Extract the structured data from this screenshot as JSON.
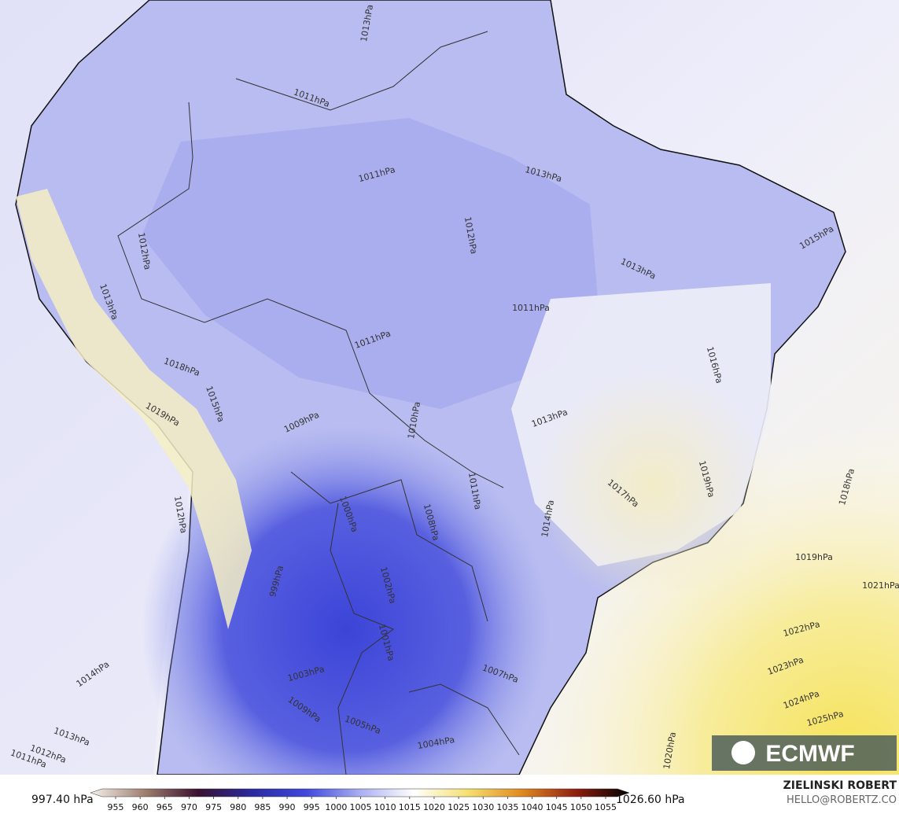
{
  "map": {
    "isobar_labels": [
      "1013hPa",
      "1011hPa",
      "1011hPa",
      "1013hPa",
      "1012hPa",
      "1012hPa",
      "1013hPa",
      "1015hPa",
      "1013hPa",
      "1011hPa",
      "1011hPa",
      "1016hPa",
      "1018hPa",
      "1019hPa",
      "1015hPa",
      "1009hPa",
      "1010hPa",
      "1013hPa",
      "1017hPa",
      "1019hPa",
      "1018hPa",
      "1011hPa",
      "1008hPa",
      "1000hPa",
      "1014hPa",
      "1002hPa",
      "1001hPa",
      "999hPa",
      "1019hPa",
      "1012hPa",
      "1021hPa",
      "1022hPa",
      "1023hPa",
      "1024hPa",
      "1025hPa",
      "1007hPa",
      "1003hPa",
      "1009hPa",
      "1005hPa",
      "1004hPa",
      "1014hPa",
      "1013hPa",
      "1012hPa",
      "1011hPa",
      "1020hPa"
    ],
    "logo": "ECMWF",
    "credits": [
      "ZIELINSKI ROBERT",
      "HELLO@ROBERTZ.CO"
    ]
  },
  "colorbar": {
    "min_label": "997.40 hPa",
    "max_label": "1026.60 hPa",
    "ticks": [
      955,
      960,
      965,
      970,
      975,
      980,
      985,
      990,
      995,
      1000,
      1005,
      1010,
      1015,
      1020,
      1025,
      1030,
      1035,
      1040,
      1045,
      1050,
      1055
    ]
  }
}
